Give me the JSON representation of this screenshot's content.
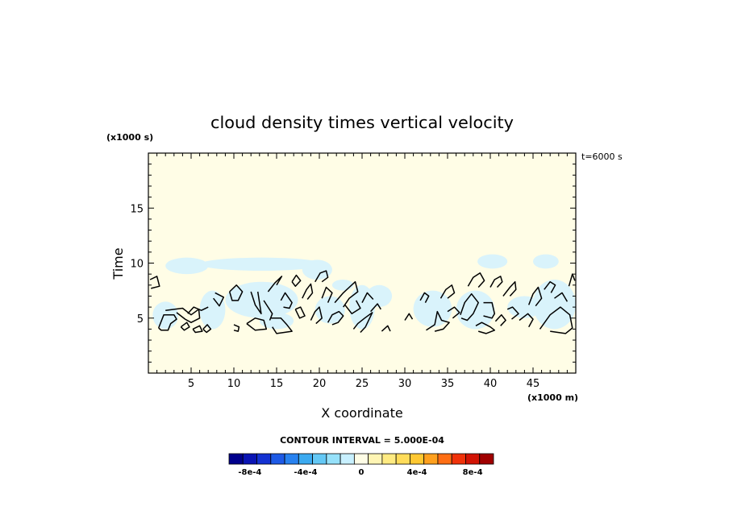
{
  "chart_data": {
    "type": "heatmap",
    "title": "cloud density times vertical velocity",
    "xlabel": "X coordinate",
    "ylabel": "Time",
    "x_units": "(x1000 m)",
    "y_units": "(x1000 s)",
    "time_stamp": "t=6000 s",
    "xlim": [
      0,
      50
    ],
    "ylim": [
      0,
      20
    ],
    "xticks": [
      5,
      10,
      15,
      20,
      25,
      30,
      35,
      40,
      45
    ],
    "xtick_labels": [
      "5",
      "10",
      "15",
      "20",
      "25",
      "30",
      "35",
      "40",
      "45"
    ],
    "yticks": [
      5,
      10,
      15
    ],
    "ytick_labels": [
      "5",
      "10",
      "15"
    ],
    "background_color": "#fffde6",
    "contour_interval_text": "CONTOUR INTERVAL = 5.000E-04",
    "colorbar": {
      "colors": [
        "#00008c",
        "#0a14b4",
        "#1432d2",
        "#1e5ae6",
        "#2882f0",
        "#3caaf0",
        "#64c8f5",
        "#96e1fa",
        "#c8f0ff",
        "#fffde6",
        "#fff5b4",
        "#ffeb82",
        "#ffdc5a",
        "#ffc832",
        "#ffa01e",
        "#ff6e14",
        "#f0320a",
        "#d21405",
        "#a00000"
      ],
      "tick_values": [
        -0.0008,
        -0.0004,
        0,
        0.0004,
        0.0008
      ],
      "tick_labels": [
        "-8e-4",
        "-4e-4",
        "0",
        "4e-4",
        "8e-4"
      ],
      "range": [
        -0.00095,
        0.00095
      ]
    },
    "light_blue_regions": [
      {
        "x": [
          0.5,
          3.5
        ],
        "y": [
          4.0,
          6.5
        ]
      },
      {
        "x": [
          2.0,
          7.0
        ],
        "y": [
          9.0,
          10.5
        ]
      },
      {
        "x": [
          6.0,
          9.0
        ],
        "y": [
          4.0,
          7.5
        ]
      },
      {
        "x": [
          6.0,
          20.5
        ],
        "y": [
          9.3,
          10.5
        ]
      },
      {
        "x": [
          9.0,
          17.5
        ],
        "y": [
          5.0,
          8.3
        ]
      },
      {
        "x": [
          13.0,
          17.0
        ],
        "y": [
          4.0,
          5.5
        ]
      },
      {
        "x": [
          18.0,
          21.5
        ],
        "y": [
          8.5,
          10.3
        ]
      },
      {
        "x": [
          19.5,
          23.0
        ],
        "y": [
          4.5,
          7.0
        ]
      },
      {
        "x": [
          21.5,
          24.0
        ],
        "y": [
          7.5,
          8.5
        ]
      },
      {
        "x": [
          23.5,
          26.5
        ],
        "y": [
          4.0,
          8.0
        ]
      },
      {
        "x": [
          25.5,
          28.5
        ],
        "y": [
          6.0,
          8.0
        ]
      },
      {
        "x": [
          31.0,
          35.5
        ],
        "y": [
          4.2,
          7.5
        ]
      },
      {
        "x": [
          36.0,
          40.5
        ],
        "y": [
          4.0,
          7.5
        ]
      },
      {
        "x": [
          38.5,
          42.0
        ],
        "y": [
          9.5,
          10.8
        ]
      },
      {
        "x": [
          42.0,
          46.0
        ],
        "y": [
          5.0,
          7.0
        ]
      },
      {
        "x": [
          45.0,
          48.0
        ],
        "y": [
          9.5,
          10.8
        ]
      },
      {
        "x": [
          45.0,
          50.0
        ],
        "y": [
          4.0,
          8.5
        ]
      }
    ],
    "contours": [
      [
        [
          0.2,
          8.5
        ],
        [
          1.0,
          8.8
        ],
        [
          1.3,
          7.9
        ],
        [
          0.3,
          7.7
        ]
      ],
      [
        [
          1.2,
          4.1
        ],
        [
          1.8,
          5.3
        ],
        [
          3.0,
          5.3
        ],
        [
          3.3,
          4.9
        ],
        [
          2.6,
          4.5
        ],
        [
          2.3,
          3.9
        ],
        [
          1.5,
          3.9
        ],
        [
          1.2,
          4.1
        ]
      ],
      [
        [
          2.0,
          5.7
        ],
        [
          4.0,
          5.9
        ],
        [
          5.0,
          5.3
        ],
        [
          5.9,
          5.8
        ],
        [
          6.0,
          5.0
        ],
        [
          5.0,
          4.6
        ],
        [
          4.3,
          4.9
        ],
        [
          3.3,
          5.5
        ]
      ],
      [
        [
          3.8,
          4.2
        ],
        [
          4.5,
          4.6
        ],
        [
          4.8,
          4.2
        ],
        [
          4.2,
          3.9
        ],
        [
          3.8,
          4.2
        ]
      ],
      [
        [
          4.6,
          5.4
        ],
        [
          5.3,
          6.0
        ],
        [
          6.2,
          5.7
        ],
        [
          7.0,
          6.0
        ]
      ],
      [
        [
          6.4,
          4.0
        ],
        [
          6.9,
          4.4
        ],
        [
          7.3,
          4.0
        ],
        [
          6.8,
          3.7
        ],
        [
          6.4,
          4.0
        ]
      ],
      [
        [
          5.2,
          4.0
        ],
        [
          6.0,
          4.3
        ],
        [
          6.3,
          3.8
        ],
        [
          5.5,
          3.7
        ],
        [
          5.2,
          4.0
        ]
      ],
      [
        [
          7.6,
          6.8
        ],
        [
          8.3,
          6.1
        ],
        [
          8.8,
          6.9
        ],
        [
          7.8,
          7.3
        ]
      ],
      [
        [
          9.5,
          7.4
        ],
        [
          10.3,
          8.0
        ],
        [
          11.0,
          7.4
        ],
        [
          10.5,
          6.6
        ],
        [
          9.8,
          6.6
        ],
        [
          9.5,
          7.4
        ]
      ],
      [
        [
          10.0,
          4.4
        ],
        [
          10.6,
          4.2
        ],
        [
          10.5,
          3.8
        ],
        [
          10.0,
          3.9
        ]
      ],
      [
        [
          11.5,
          4.5
        ],
        [
          12.5,
          3.9
        ],
        [
          13.8,
          4.0
        ],
        [
          13.5,
          4.8
        ],
        [
          12.5,
          5.0
        ],
        [
          11.5,
          4.5
        ]
      ],
      [
        [
          12.0,
          7.4
        ],
        [
          12.5,
          6.2
        ],
        [
          13.2,
          5.4
        ],
        [
          12.8,
          7.4
        ]
      ],
      [
        [
          13.5,
          6.6
        ],
        [
          14.0,
          6.0
        ],
        [
          14.5,
          5.4
        ],
        [
          14.2,
          4.8
        ]
      ],
      [
        [
          14.0,
          7.4
        ],
        [
          14.8,
          8.2
        ],
        [
          15.6,
          8.8
        ],
        [
          15.0,
          8.0
        ]
      ],
      [
        [
          14.3,
          5.0
        ],
        [
          15.5,
          5.0
        ],
        [
          16.2,
          4.4
        ],
        [
          16.8,
          3.8
        ],
        [
          15.0,
          3.6
        ],
        [
          14.5,
          4.2
        ]
      ],
      [
        [
          15.5,
          6.6
        ],
        [
          16.0,
          7.3
        ],
        [
          16.8,
          6.4
        ],
        [
          16.5,
          5.9
        ],
        [
          15.8,
          6.0
        ]
      ],
      [
        [
          16.8,
          8.3
        ],
        [
          17.3,
          8.9
        ],
        [
          17.8,
          8.4
        ],
        [
          17.2,
          7.9
        ],
        [
          16.8,
          8.3
        ]
      ],
      [
        [
          17.2,
          5.8
        ],
        [
          17.8,
          6.0
        ],
        [
          18.3,
          5.2
        ],
        [
          17.7,
          5.0
        ],
        [
          17.2,
          5.8
        ]
      ],
      [
        [
          18.0,
          6.8
        ],
        [
          18.5,
          7.6
        ],
        [
          19.0,
          8.1
        ],
        [
          19.2,
          7.3
        ],
        [
          18.6,
          6.7
        ]
      ],
      [
        [
          19.0,
          4.8
        ],
        [
          19.5,
          5.6
        ],
        [
          20.0,
          6.0
        ],
        [
          20.3,
          5.0
        ],
        [
          19.6,
          4.5
        ]
      ],
      [
        [
          19.5,
          8.3
        ],
        [
          20.1,
          9.1
        ],
        [
          20.8,
          9.3
        ],
        [
          21.0,
          8.7
        ],
        [
          20.3,
          8.3
        ]
      ],
      [
        [
          20.3,
          6.8
        ],
        [
          20.8,
          7.8
        ],
        [
          21.5,
          7.3
        ],
        [
          21.0,
          6.4
        ]
      ],
      [
        [
          21.0,
          4.6
        ],
        [
          21.5,
          5.3
        ],
        [
          22.3,
          5.6
        ],
        [
          22.8,
          5.2
        ],
        [
          22.2,
          4.6
        ],
        [
          21.5,
          4.4
        ]
      ],
      [
        [
          21.8,
          6.4
        ],
        [
          22.8,
          7.3
        ],
        [
          23.5,
          7.8
        ],
        [
          24.2,
          8.3
        ],
        [
          24.5,
          7.4
        ],
        [
          23.5,
          6.8
        ],
        [
          22.8,
          6.0
        ]
      ],
      [
        [
          23.0,
          6.2
        ],
        [
          23.8,
          5.4
        ],
        [
          24.8,
          5.9
        ],
        [
          24.3,
          6.6
        ]
      ],
      [
        [
          24.0,
          4.0
        ],
        [
          24.5,
          4.5
        ],
        [
          25.3,
          5.0
        ],
        [
          26.2,
          5.5
        ],
        [
          25.4,
          4.2
        ],
        [
          24.8,
          3.7
        ]
      ],
      [
        [
          25.0,
          6.4
        ],
        [
          25.6,
          7.3
        ],
        [
          26.3,
          6.7
        ]
      ],
      [
        [
          26.0,
          5.6
        ],
        [
          26.8,
          6.3
        ],
        [
          27.2,
          5.8
        ]
      ],
      [
        [
          27.3,
          3.8
        ],
        [
          28.0,
          4.3
        ],
        [
          28.3,
          3.8
        ]
      ],
      [
        [
          30.0,
          4.8
        ],
        [
          30.5,
          5.4
        ],
        [
          30.9,
          4.9
        ]
      ],
      [
        [
          31.8,
          6.6
        ],
        [
          32.3,
          7.3
        ],
        [
          32.8,
          7.0
        ],
        [
          32.4,
          6.4
        ]
      ],
      [
        [
          32.5,
          3.9
        ],
        [
          33.5,
          4.4
        ],
        [
          33.8,
          5.6
        ],
        [
          34.3,
          4.8
        ],
        [
          35.2,
          4.6
        ],
        [
          34.5,
          4.0
        ],
        [
          33.5,
          3.8
        ]
      ],
      [
        [
          34.2,
          6.8
        ],
        [
          34.8,
          7.6
        ],
        [
          35.5,
          8.0
        ],
        [
          35.8,
          7.3
        ],
        [
          35.0,
          6.8
        ]
      ],
      [
        [
          35.0,
          5.6
        ],
        [
          35.8,
          6.0
        ],
        [
          36.4,
          5.5
        ],
        [
          35.6,
          5.0
        ]
      ],
      [
        [
          36.5,
          5.3
        ],
        [
          37.0,
          6.4
        ],
        [
          37.8,
          7.2
        ],
        [
          38.6,
          6.4
        ],
        [
          38.0,
          5.4
        ],
        [
          37.3,
          4.8
        ],
        [
          36.6,
          5.0
        ]
      ],
      [
        [
          37.4,
          7.9
        ],
        [
          38.0,
          8.7
        ],
        [
          38.8,
          9.1
        ],
        [
          39.3,
          8.4
        ],
        [
          38.6,
          7.8
        ]
      ],
      [
        [
          38.3,
          4.3
        ],
        [
          39.0,
          4.6
        ],
        [
          40.0,
          4.2
        ],
        [
          40.5,
          3.9
        ],
        [
          39.5,
          3.6
        ],
        [
          38.6,
          3.8
        ]
      ],
      [
        [
          39.2,
          6.4
        ],
        [
          40.2,
          6.4
        ],
        [
          40.5,
          5.4
        ],
        [
          40.2,
          5.0
        ],
        [
          39.2,
          5.2
        ]
      ],
      [
        [
          40.0,
          7.8
        ],
        [
          40.5,
          8.5
        ],
        [
          41.2,
          8.8
        ],
        [
          41.4,
          8.3
        ],
        [
          40.8,
          7.8
        ]
      ],
      [
        [
          40.6,
          4.7
        ],
        [
          41.3,
          5.3
        ],
        [
          41.8,
          4.8
        ],
        [
          41.2,
          4.3
        ]
      ],
      [
        [
          41.5,
          7.0
        ],
        [
          42.3,
          7.8
        ],
        [
          42.9,
          8.3
        ],
        [
          43.0,
          7.6
        ],
        [
          42.3,
          7.0
        ]
      ],
      [
        [
          42.0,
          5.8
        ],
        [
          42.6,
          6.0
        ],
        [
          43.3,
          5.4
        ],
        [
          42.5,
          4.9
        ]
      ],
      [
        [
          43.4,
          4.8
        ],
        [
          44.4,
          5.4
        ],
        [
          45.0,
          4.9
        ],
        [
          44.5,
          4.2
        ]
      ],
      [
        [
          44.5,
          6.2
        ],
        [
          45.0,
          7.2
        ],
        [
          45.6,
          7.8
        ],
        [
          46.0,
          6.8
        ],
        [
          45.3,
          6.1
        ]
      ],
      [
        [
          46.3,
          7.6
        ],
        [
          47.0,
          8.3
        ],
        [
          47.6,
          8.0
        ],
        [
          47.1,
          7.3
        ]
      ],
      [
        [
          45.8,
          4.0
        ],
        [
          47.0,
          5.3
        ],
        [
          48.2,
          6.0
        ],
        [
          49.3,
          5.3
        ],
        [
          49.6,
          4.1
        ],
        [
          48.8,
          3.6
        ],
        [
          47.0,
          3.8
        ]
      ],
      [
        [
          47.5,
          6.8
        ],
        [
          48.4,
          7.3
        ],
        [
          49.0,
          6.5
        ]
      ],
      [
        [
          49.2,
          7.9
        ],
        [
          49.6,
          9.0
        ],
        [
          49.9,
          8.4
        ]
      ]
    ]
  }
}
